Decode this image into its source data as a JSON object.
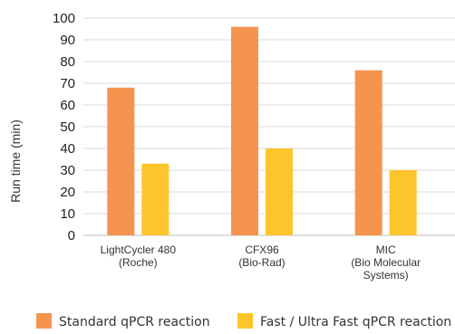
{
  "chart_data": {
    "type": "bar",
    "title": "",
    "xlabel": "",
    "ylabel": "Run time (min)",
    "ylim": [
      0,
      100
    ],
    "yticks": [
      0,
      10,
      20,
      30,
      40,
      50,
      60,
      70,
      80,
      90,
      100
    ],
    "grid": "horizontal",
    "legend_position": "bottom",
    "categories": [
      [
        "LightCycler 480",
        "(Roche)"
      ],
      [
        "CFX96",
        "(Bio-Rad)"
      ],
      [
        "MIC",
        "(Bio Molecular",
        "Systems)"
      ]
    ],
    "series": [
      {
        "name": "Standard qPCR reaction",
        "color": "#F5944F",
        "values": [
          68,
          96,
          76
        ]
      },
      {
        "name": "Fast / Ultra Fast qPCR reaction",
        "color": "#FDC52C",
        "values": [
          33,
          40,
          30
        ]
      }
    ]
  }
}
